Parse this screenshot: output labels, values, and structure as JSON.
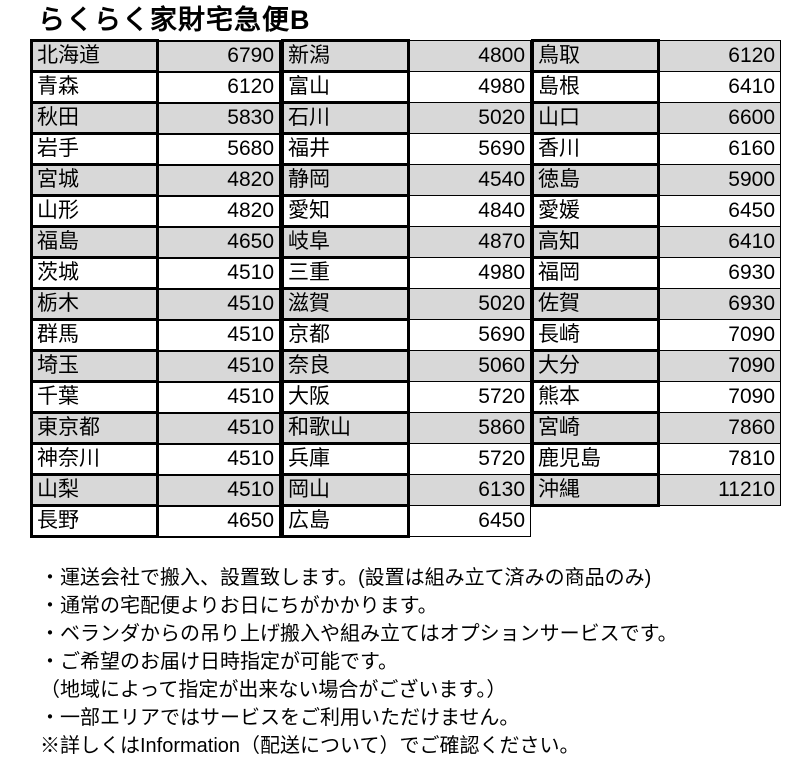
{
  "title": "らくらく家財宅急便B",
  "colors": {
    "row_shade": "#d8d8d8",
    "border": "#000000",
    "text": "#000000",
    "background": "#ffffff"
  },
  "table": {
    "groups": [
      {
        "rows": [
          [
            "北海道",
            6790
          ],
          [
            "青森",
            6120
          ],
          [
            "秋田",
            5830
          ],
          [
            "岩手",
            5680
          ],
          [
            "宮城",
            4820
          ],
          [
            "山形",
            4820
          ],
          [
            "福島",
            4650
          ],
          [
            "茨城",
            4510
          ],
          [
            "栃木",
            4510
          ],
          [
            "群馬",
            4510
          ],
          [
            "埼玉",
            4510
          ],
          [
            "千葉",
            4510
          ],
          [
            "東京都",
            4510
          ],
          [
            "神奈川",
            4510
          ],
          [
            "山梨",
            4510
          ],
          [
            "長野",
            4650
          ]
        ]
      },
      {
        "rows": [
          [
            "新潟",
            4800
          ],
          [
            "富山",
            4980
          ],
          [
            "石川",
            5020
          ],
          [
            "福井",
            5690
          ],
          [
            "静岡",
            4540
          ],
          [
            "愛知",
            4840
          ],
          [
            "岐阜",
            4870
          ],
          [
            "三重",
            4980
          ],
          [
            "滋賀",
            5020
          ],
          [
            "京都",
            5690
          ],
          [
            "奈良",
            5060
          ],
          [
            "大阪",
            5720
          ],
          [
            "和歌山",
            5860
          ],
          [
            "兵庫",
            5720
          ],
          [
            "岡山",
            6130
          ],
          [
            "広島",
            6450
          ]
        ]
      },
      {
        "rows": [
          [
            "鳥取",
            6120
          ],
          [
            "島根",
            6410
          ],
          [
            "山口",
            6600
          ],
          [
            "香川",
            6160
          ],
          [
            "徳島",
            5900
          ],
          [
            "愛媛",
            6450
          ],
          [
            "高知",
            6410
          ],
          [
            "福岡",
            6930
          ],
          [
            "佐賀",
            6930
          ],
          [
            "長崎",
            7090
          ],
          [
            "大分",
            7090
          ],
          [
            "熊本",
            7090
          ],
          [
            "宮崎",
            7860
          ],
          [
            "鹿児島",
            7810
          ],
          [
            "沖縄",
            11210
          ]
        ]
      }
    ]
  },
  "notes": [
    "・運送会社で搬入、設置致します。(設置は組み立て済みの商品のみ)",
    "・通常の宅配便よりお日にちがかかります。",
    "・ベランダからの吊り上げ搬入や組み立てはオプションサービスです。",
    "・ご希望のお届け日時指定が可能です。",
    "（地域によって指定が出来ない場合がございます。）",
    "・一部エリアではサービスをご利用いただけません。",
    "※詳しくはInformation（配送について）でご確認ください。"
  ]
}
